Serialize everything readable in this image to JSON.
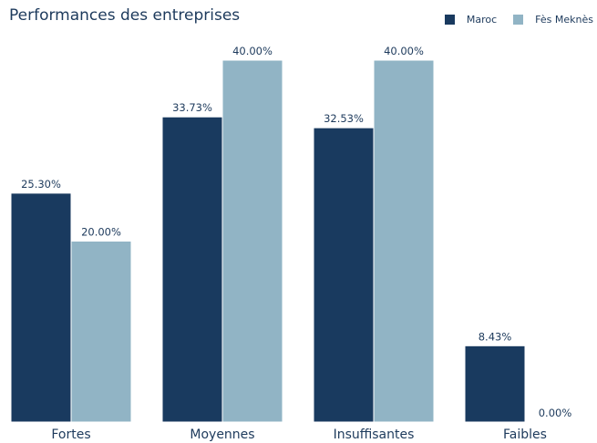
{
  "chart_data": {
    "type": "bar",
    "title": "Performances des entreprises",
    "categories": [
      "Fortes",
      "Moyennes",
      "Insuffisantes",
      "Faibles"
    ],
    "series": [
      {
        "name": "Maroc",
        "values": [
          25.3,
          33.73,
          32.53,
          8.43
        ],
        "labels": [
          "25.30%",
          "33.73%",
          "32.53%",
          "8.43%"
        ],
        "color": "#193a5f"
      },
      {
        "name": "Fès Meknès",
        "values": [
          20.0,
          40.0,
          40.0,
          0.0
        ],
        "labels": [
          "20.00%",
          "40.00%",
          "40.00%",
          "0.00%"
        ],
        "color": "#91b4c5"
      }
    ],
    "ylim": [
      0,
      40
    ],
    "grid": false,
    "legend_position": "top-right"
  }
}
